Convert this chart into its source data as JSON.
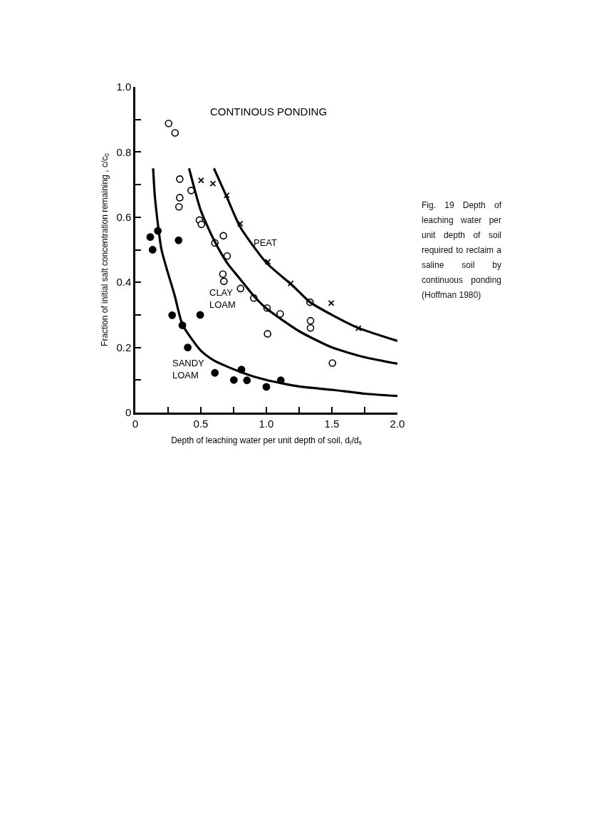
{
  "chart_data": {
    "type": "scatter",
    "title": "CONTINOUS PONDING",
    "xlabel": "Depth of leaching water per unit depth of soil, d$_{ℓ}$/d$_{s}$",
    "ylabel": "Fraction of initial salt concentration remaining , c/c$_{0}$",
    "xlim": [
      0,
      2.0
    ],
    "ylim": [
      0,
      1.0
    ],
    "xticks": [
      0,
      {
        "value": 0.25,
        "label": null
      },
      0.5,
      {
        "value": 0.75,
        "label": null
      },
      {
        "value": 1.0,
        "label": "1.0"
      },
      {
        "value": 1.25,
        "label": null
      },
      1.5,
      {
        "value": 1.75,
        "label": null
      },
      {
        "value": 2.0,
        "label": "2.0"
      }
    ],
    "yticks": [
      0,
      {
        "value": 0.1,
        "label": null
      },
      0.2,
      {
        "value": 0.3,
        "label": null
      },
      0.4,
      {
        "value": 0.5,
        "label": null
      },
      0.6,
      {
        "value": 0.7,
        "label": null
      },
      0.8,
      {
        "value": 0.9,
        "label": null
      },
      {
        "value": 1.0,
        "label": "1.0"
      }
    ],
    "grid": false,
    "legend": false,
    "series": [
      {
        "marker": "circle",
        "color": "#000000",
        "x": [
          0.114,
          0.132,
          0.172,
          0.33,
          0.281,
          0.359,
          0.4,
          0.495,
          0.607,
          0.752,
          0.81,
          0.852,
          1.0,
          1.11
        ],
        "values": [
          0.539,
          0.5,
          0.558,
          0.529,
          0.299,
          0.268,
          0.2,
          0.3,
          0.122,
          0.1,
          0.132,
          0.099,
          0.079,
          0.099
        ]
      },
      {
        "marker": "circle",
        "color": "#ffffff",
        "x": [
          0.254,
          0.303,
          0.339,
          0.339,
          0.333,
          0.426,
          0.489,
          0.504,
          0.607,
          0.672,
          0.701,
          0.668,
          0.676,
          0.803,
          0.904,
          1.005,
          1.009,
          1.105,
          1.333,
          1.337,
          1.337,
          1.504
        ],
        "values": [
          0.888,
          0.859,
          0.717,
          0.66,
          0.632,
          0.682,
          0.591,
          0.578,
          0.521,
          0.543,
          0.481,
          0.425,
          0.403,
          0.381,
          0.352,
          0.321,
          0.242,
          0.303,
          0.339,
          0.282,
          0.26,
          0.152
        ]
      },
      {
        "marker": "cross",
        "color": "#000000",
        "x": [
          0.502,
          0.592,
          0.697,
          0.8,
          1.011,
          1.186,
          1.495,
          1.703
        ],
        "values": [
          0.713,
          0.703,
          0.667,
          0.58,
          0.463,
          0.397,
          0.336,
          0.259
        ]
      },
      {
        "type": "line",
        "name": "SANDY LOAM",
        "marker": "none",
        "line_style": "solid",
        "color": "#000000",
        "x": [
          0.136,
          0.15,
          0.2,
          0.3,
          0.36,
          0.5,
          0.6,
          0.8,
          1.0,
          1.25,
          1.5,
          1.75,
          2.0
        ],
        "values": [
          0.75,
          0.66,
          0.5,
          0.36,
          0.27,
          0.19,
          0.16,
          0.125,
          0.1,
          0.08,
          0.07,
          0.058,
          0.051
        ]
      },
      {
        "type": "line",
        "name": "CLAY LOAM",
        "marker": "none",
        "line_style": "solid",
        "color": "#000000",
        "x": [
          0.41,
          0.5,
          0.6,
          0.7,
          0.8,
          0.9,
          1.0,
          1.25,
          1.5,
          1.75,
          2.0
        ],
        "values": [
          0.75,
          0.62,
          0.53,
          0.46,
          0.41,
          0.36,
          0.32,
          0.25,
          0.2,
          0.17,
          0.15
        ]
      },
      {
        "type": "line",
        "name": "PEAT",
        "marker": "none",
        "line_style": "solid",
        "color": "#000000",
        "x": [
          0.6,
          0.7,
          0.8,
          1.0,
          1.2,
          1.33,
          1.5,
          1.7,
          2.0
        ],
        "values": [
          0.75,
          0.66,
          0.57,
          0.46,
          0.39,
          0.34,
          0.3,
          0.26,
          0.22
        ]
      }
    ],
    "annotations": [
      "Fig. 19 Depth of leaching water per unit depth of soil required to reclaim a saline soil by continuous ponding (Hoffman 1980)"
    ]
  }
}
